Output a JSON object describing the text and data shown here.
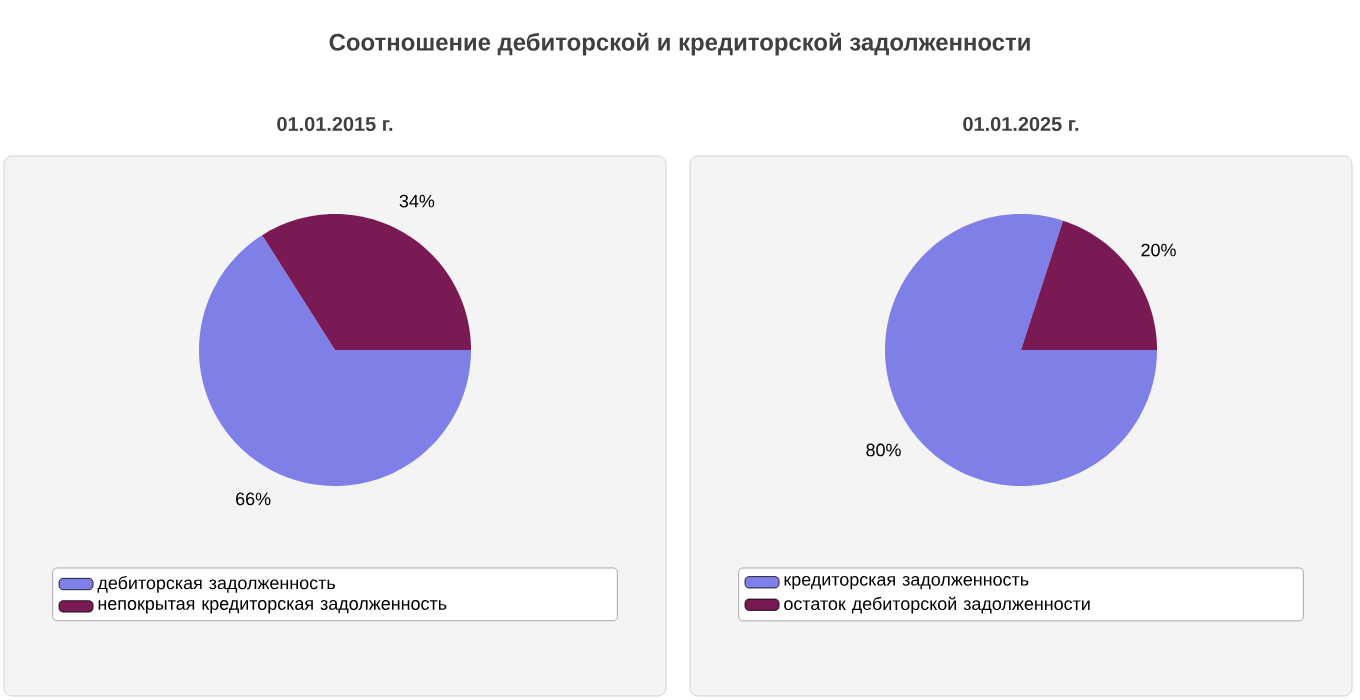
{
  "chart_data": [
    {
      "type": "pie",
      "title": "Соотношение дебиторской и кредиторской задолженности",
      "subtitle": "01.01.2015 г.",
      "categories": [
        "дебиторская задолженность",
        "непокрытая кредиторская задолженность"
      ],
      "values": [
        66,
        34
      ],
      "colors": [
        "#7f7fe8",
        "#7a1a55"
      ],
      "value_labels": [
        "66%",
        "34%"
      ],
      "legend": "bottom"
    },
    {
      "type": "pie",
      "subtitle": "01.01.2025 г.",
      "categories": [
        "кредиторская задолженность",
        "остаток дебиторской задолженности"
      ],
      "values": [
        80,
        20
      ],
      "colors": [
        "#7f7fe8",
        "#7a1a55"
      ],
      "value_labels": [
        "80%",
        "20%"
      ],
      "legend": "bottom"
    }
  ]
}
